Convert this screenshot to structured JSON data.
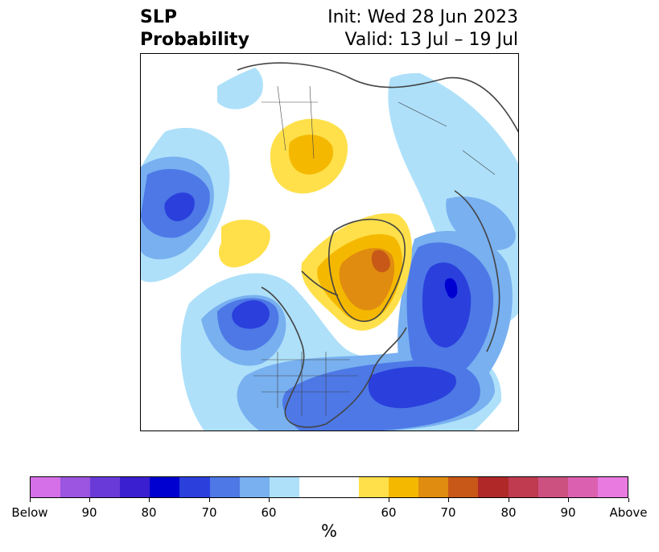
{
  "title": {
    "left_line1": "SLP",
    "left_line2": "Probability",
    "right_line1": "Init: Wed 28 Jun 2023",
    "right_line2": "Valid: 13 Jul – 19 Jul"
  },
  "colorbar": {
    "unit": "%",
    "ticks": [
      "Below",
      "90",
      "80",
      "70",
      "60",
      "60",
      "70",
      "80",
      "90",
      "Above"
    ],
    "colors": [
      "#d670e8",
      "#9b55e0",
      "#6a3ad8",
      "#3a1fd0",
      "#0000d0",
      "#2a3fdc",
      "#4d78e6",
      "#78b0f0",
      "#aee0fa",
      "#ffffff",
      "#ffffff",
      "#ffe04a",
      "#f5b800",
      "#e08c10",
      "#c85818",
      "#b02828",
      "#c03a50",
      "#cc5080",
      "#dc60b0",
      "#e87ae0"
    ]
  },
  "map": {
    "projection": "north-polar-stereographic",
    "variable": "sea-level-pressure-tercile-probability",
    "features": [
      "land-outline",
      "country-borders",
      "us-state-borders"
    ]
  }
}
